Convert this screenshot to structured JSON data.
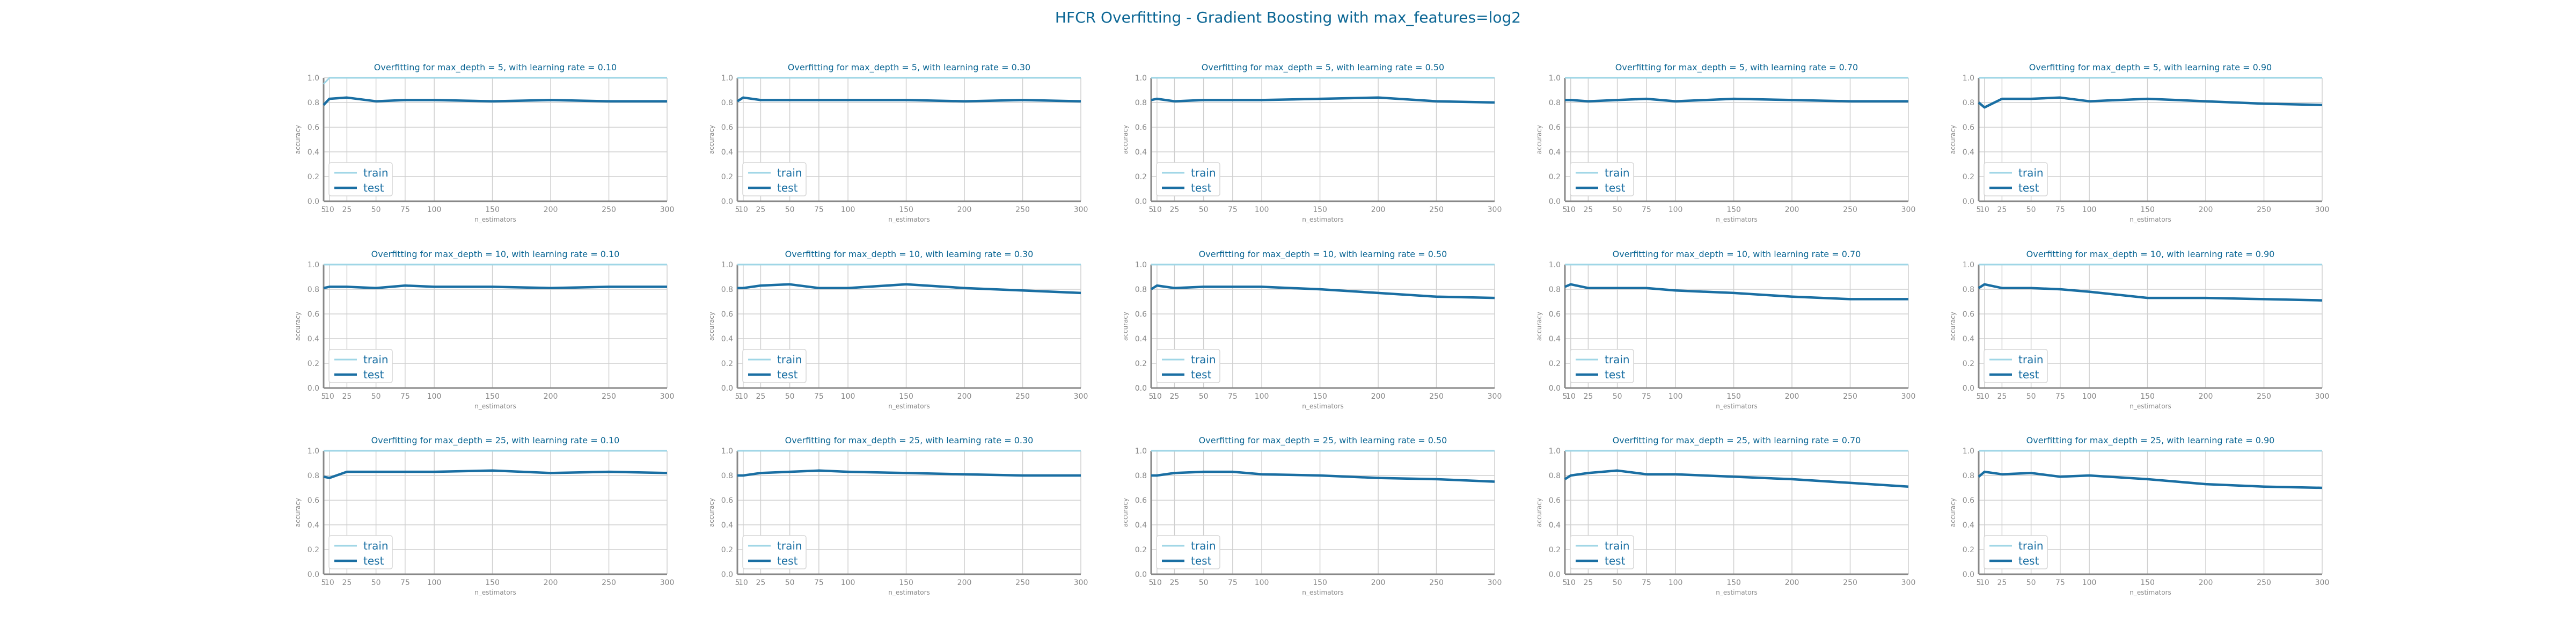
{
  "page": {
    "title": "HFCR Overfitting - Gradient Boosting with max_features=log2"
  },
  "colors": {
    "train": "#9fd6e6",
    "test": "#1a6fa3",
    "title": "#0b6694",
    "axis": "#888888",
    "grid": "#cfcfcf",
    "legend_text": "#1a6fa3"
  },
  "chart_data": [
    {
      "type": "line",
      "title": "Overfitting for max_depth = 5, with learning rate = 0.10",
      "xlabel": "n_estimators",
      "ylabel": "accuracy",
      "x": [
        5,
        10,
        25,
        50,
        75,
        100,
        150,
        200,
        250,
        300
      ],
      "ylim": [
        0,
        1
      ],
      "xlim": [
        5,
        300
      ],
      "xticks": [
        "5",
        "10",
        "25",
        "50",
        "75",
        "100",
        "150",
        "200",
        "250",
        "300"
      ],
      "yticks": [
        "0.0",
        "0.2",
        "0.4",
        "0.6",
        "0.8",
        "1.0"
      ],
      "legend": "lower-left",
      "series": [
        {
          "name": "train",
          "values": [
            0.95,
            1,
            1,
            1,
            1,
            1,
            1,
            1,
            1,
            1
          ]
        },
        {
          "name": "test",
          "values": [
            0.78,
            0.83,
            0.84,
            0.81,
            0.82,
            0.82,
            0.81,
            0.82,
            0.81,
            0.81
          ]
        }
      ]
    },
    {
      "type": "line",
      "title": "Overfitting for max_depth = 5, with learning rate = 0.30",
      "xlabel": "n_estimators",
      "ylabel": "accuracy",
      "x": [
        5,
        10,
        25,
        50,
        75,
        100,
        150,
        200,
        250,
        300
      ],
      "ylim": [
        0,
        1
      ],
      "xlim": [
        5,
        300
      ],
      "xticks": [
        "5",
        "10",
        "25",
        "50",
        "75",
        "100",
        "150",
        "200",
        "250",
        "300"
      ],
      "yticks": [
        "0.0",
        "0.2",
        "0.4",
        "0.6",
        "0.8",
        "1.0"
      ],
      "legend": "lower-left",
      "series": [
        {
          "name": "train",
          "values": [
            1,
            1,
            1,
            1,
            1,
            1,
            1,
            1,
            1,
            1
          ]
        },
        {
          "name": "test",
          "values": [
            0.81,
            0.84,
            0.82,
            0.82,
            0.82,
            0.82,
            0.82,
            0.81,
            0.82,
            0.81
          ]
        }
      ]
    },
    {
      "type": "line",
      "title": "Overfitting for max_depth = 5, with learning rate = 0.50",
      "xlabel": "n_estimators",
      "ylabel": "accuracy",
      "x": [
        5,
        10,
        25,
        50,
        75,
        100,
        150,
        200,
        250,
        300
      ],
      "ylim": [
        0,
        1
      ],
      "xlim": [
        5,
        300
      ],
      "xticks": [
        "5",
        "10",
        "25",
        "50",
        "75",
        "100",
        "150",
        "200",
        "250",
        "300"
      ],
      "yticks": [
        "0.0",
        "0.2",
        "0.4",
        "0.6",
        "0.8",
        "1.0"
      ],
      "legend": "lower-left",
      "series": [
        {
          "name": "train",
          "values": [
            1,
            1,
            1,
            1,
            1,
            1,
            1,
            1,
            1,
            1
          ]
        },
        {
          "name": "test",
          "values": [
            0.82,
            0.83,
            0.81,
            0.82,
            0.82,
            0.82,
            0.83,
            0.84,
            0.81,
            0.8
          ]
        }
      ]
    },
    {
      "type": "line",
      "title": "Overfitting for max_depth = 5, with learning rate = 0.70",
      "xlabel": "n_estimators",
      "ylabel": "accuracy",
      "x": [
        5,
        10,
        25,
        50,
        75,
        100,
        150,
        200,
        250,
        300
      ],
      "ylim": [
        0,
        1
      ],
      "xlim": [
        5,
        300
      ],
      "xticks": [
        "5",
        "10",
        "25",
        "50",
        "75",
        "100",
        "150",
        "200",
        "250",
        "300"
      ],
      "yticks": [
        "0.0",
        "0.2",
        "0.4",
        "0.6",
        "0.8",
        "1.0"
      ],
      "legend": "lower-left",
      "series": [
        {
          "name": "train",
          "values": [
            1,
            1,
            1,
            1,
            1,
            1,
            1,
            1,
            1,
            1
          ]
        },
        {
          "name": "test",
          "values": [
            0.82,
            0.82,
            0.81,
            0.82,
            0.83,
            0.81,
            0.83,
            0.82,
            0.81,
            0.81
          ]
        }
      ]
    },
    {
      "type": "line",
      "title": "Overfitting for max_depth = 5, with learning rate = 0.90",
      "xlabel": "n_estimators",
      "ylabel": "accuracy",
      "x": [
        5,
        10,
        25,
        50,
        75,
        100,
        150,
        200,
        250,
        300
      ],
      "ylim": [
        0,
        1
      ],
      "xlim": [
        5,
        300
      ],
      "xticks": [
        "5",
        "10",
        "25",
        "50",
        "75",
        "100",
        "150",
        "200",
        "250",
        "300"
      ],
      "yticks": [
        "0.0",
        "0.2",
        "0.4",
        "0.6",
        "0.8",
        "1.0"
      ],
      "legend": "lower-left",
      "series": [
        {
          "name": "train",
          "values": [
            1,
            1,
            1,
            1,
            1,
            1,
            1,
            1,
            1,
            1
          ]
        },
        {
          "name": "test",
          "values": [
            0.8,
            0.76,
            0.83,
            0.83,
            0.84,
            0.81,
            0.83,
            0.81,
            0.79,
            0.78
          ]
        }
      ]
    },
    {
      "type": "line",
      "title": "Overfitting for max_depth = 10, with learning rate = 0.10",
      "xlabel": "n_estimators",
      "ylabel": "accuracy",
      "x": [
        5,
        10,
        25,
        50,
        75,
        100,
        150,
        200,
        250,
        300
      ],
      "ylim": [
        0,
        1
      ],
      "xlim": [
        5,
        300
      ],
      "xticks": [
        "5",
        "10",
        "25",
        "50",
        "75",
        "100",
        "150",
        "200",
        "250",
        "300"
      ],
      "yticks": [
        "0.0",
        "0.2",
        "0.4",
        "0.6",
        "0.8",
        "1.0"
      ],
      "legend": "lower-left",
      "series": [
        {
          "name": "train",
          "values": [
            1,
            1,
            1,
            1,
            1,
            1,
            1,
            1,
            1,
            1
          ]
        },
        {
          "name": "test",
          "values": [
            0.81,
            0.82,
            0.82,
            0.81,
            0.83,
            0.82,
            0.82,
            0.81,
            0.82,
            0.82
          ]
        }
      ]
    },
    {
      "type": "line",
      "title": "Overfitting for max_depth = 10, with learning rate = 0.30",
      "xlabel": "n_estimators",
      "ylabel": "accuracy",
      "x": [
        5,
        10,
        25,
        50,
        75,
        100,
        150,
        200,
        250,
        300
      ],
      "ylim": [
        0,
        1
      ],
      "xlim": [
        5,
        300
      ],
      "xticks": [
        "5",
        "10",
        "25",
        "50",
        "75",
        "100",
        "150",
        "200",
        "250",
        "300"
      ],
      "yticks": [
        "0.0",
        "0.2",
        "0.4",
        "0.6",
        "0.8",
        "1.0"
      ],
      "legend": "lower-left",
      "series": [
        {
          "name": "train",
          "values": [
            1,
            1,
            1,
            1,
            1,
            1,
            1,
            1,
            1,
            1
          ]
        },
        {
          "name": "test",
          "values": [
            0.81,
            0.81,
            0.83,
            0.84,
            0.81,
            0.81,
            0.84,
            0.81,
            0.79,
            0.77
          ]
        }
      ]
    },
    {
      "type": "line",
      "title": "Overfitting for max_depth = 10, with learning rate = 0.50",
      "xlabel": "n_estimators",
      "ylabel": "accuracy",
      "x": [
        5,
        10,
        25,
        50,
        75,
        100,
        150,
        200,
        250,
        300
      ],
      "ylim": [
        0,
        1
      ],
      "xlim": [
        5,
        300
      ],
      "xticks": [
        "5",
        "10",
        "25",
        "50",
        "75",
        "100",
        "150",
        "200",
        "250",
        "300"
      ],
      "yticks": [
        "0.0",
        "0.2",
        "0.4",
        "0.6",
        "0.8",
        "1.0"
      ],
      "legend": "lower-left",
      "series": [
        {
          "name": "train",
          "values": [
            1,
            1,
            1,
            1,
            1,
            1,
            1,
            1,
            1,
            1
          ]
        },
        {
          "name": "test",
          "values": [
            0.8,
            0.83,
            0.81,
            0.82,
            0.82,
            0.82,
            0.8,
            0.77,
            0.74,
            0.73
          ]
        }
      ]
    },
    {
      "type": "line",
      "title": "Overfitting for max_depth = 10, with learning rate = 0.70",
      "xlabel": "n_estimators",
      "ylabel": "accuracy",
      "x": [
        5,
        10,
        25,
        50,
        75,
        100,
        150,
        200,
        250,
        300
      ],
      "ylim": [
        0,
        1
      ],
      "xlim": [
        5,
        300
      ],
      "xticks": [
        "5",
        "10",
        "25",
        "50",
        "75",
        "100",
        "150",
        "200",
        "250",
        "300"
      ],
      "yticks": [
        "0.0",
        "0.2",
        "0.4",
        "0.6",
        "0.8",
        "1.0"
      ],
      "legend": "lower-left",
      "series": [
        {
          "name": "train",
          "values": [
            1,
            1,
            1,
            1,
            1,
            1,
            1,
            1,
            1,
            1
          ]
        },
        {
          "name": "test",
          "values": [
            0.82,
            0.84,
            0.81,
            0.81,
            0.81,
            0.79,
            0.77,
            0.74,
            0.72,
            0.72
          ]
        }
      ]
    },
    {
      "type": "line",
      "title": "Overfitting for max_depth = 10, with learning rate = 0.90",
      "xlabel": "n_estimators",
      "ylabel": "accuracy",
      "x": [
        5,
        10,
        25,
        50,
        75,
        100,
        150,
        200,
        250,
        300
      ],
      "ylim": [
        0,
        1
      ],
      "xlim": [
        5,
        300
      ],
      "xticks": [
        "5",
        "10",
        "25",
        "50",
        "75",
        "100",
        "150",
        "200",
        "250",
        "300"
      ],
      "yticks": [
        "0.0",
        "0.2",
        "0.4",
        "0.6",
        "0.8",
        "1.0"
      ],
      "legend": "lower-left",
      "series": [
        {
          "name": "train",
          "values": [
            1,
            1,
            1,
            1,
            1,
            1,
            1,
            1,
            1,
            1
          ]
        },
        {
          "name": "test",
          "values": [
            0.81,
            0.84,
            0.81,
            0.81,
            0.8,
            0.78,
            0.73,
            0.73,
            0.72,
            0.71
          ]
        }
      ]
    },
    {
      "type": "line",
      "title": "Overfitting for max_depth = 25, with learning rate = 0.10",
      "xlabel": "n_estimators",
      "ylabel": "accuracy",
      "x": [
        5,
        10,
        25,
        50,
        75,
        100,
        150,
        200,
        250,
        300
      ],
      "ylim": [
        0,
        1
      ],
      "xlim": [
        5,
        300
      ],
      "xticks": [
        "5",
        "10",
        "25",
        "50",
        "75",
        "100",
        "150",
        "200",
        "250",
        "300"
      ],
      "yticks": [
        "0.0",
        "0.2",
        "0.4",
        "0.6",
        "0.8",
        "1.0"
      ],
      "legend": "lower-left",
      "series": [
        {
          "name": "train",
          "values": [
            1,
            1,
            1,
            1,
            1,
            1,
            1,
            1,
            1,
            1
          ]
        },
        {
          "name": "test",
          "values": [
            0.79,
            0.78,
            0.83,
            0.83,
            0.83,
            0.83,
            0.84,
            0.82,
            0.83,
            0.82
          ]
        }
      ]
    },
    {
      "type": "line",
      "title": "Overfitting for max_depth = 25, with learning rate = 0.30",
      "xlabel": "n_estimators",
      "ylabel": "accuracy",
      "x": [
        5,
        10,
        25,
        50,
        75,
        100,
        150,
        200,
        250,
        300
      ],
      "ylim": [
        0,
        1
      ],
      "xlim": [
        5,
        300
      ],
      "xticks": [
        "5",
        "10",
        "25",
        "50",
        "75",
        "100",
        "150",
        "200",
        "250",
        "300"
      ],
      "yticks": [
        "0.0",
        "0.2",
        "0.4",
        "0.6",
        "0.8",
        "1.0"
      ],
      "legend": "lower-left",
      "series": [
        {
          "name": "train",
          "values": [
            1,
            1,
            1,
            1,
            1,
            1,
            1,
            1,
            1,
            1
          ]
        },
        {
          "name": "test",
          "values": [
            0.8,
            0.8,
            0.82,
            0.83,
            0.84,
            0.83,
            0.82,
            0.81,
            0.8,
            0.8
          ]
        }
      ]
    },
    {
      "type": "line",
      "title": "Overfitting for max_depth = 25, with learning rate = 0.50",
      "xlabel": "n_estimators",
      "ylabel": "accuracy",
      "x": [
        5,
        10,
        25,
        50,
        75,
        100,
        150,
        200,
        250,
        300
      ],
      "ylim": [
        0,
        1
      ],
      "xlim": [
        5,
        300
      ],
      "xticks": [
        "5",
        "10",
        "25",
        "50",
        "75",
        "100",
        "150",
        "200",
        "250",
        "300"
      ],
      "yticks": [
        "0.0",
        "0.2",
        "0.4",
        "0.6",
        "0.8",
        "1.0"
      ],
      "legend": "lower-left",
      "series": [
        {
          "name": "train",
          "values": [
            1,
            1,
            1,
            1,
            1,
            1,
            1,
            1,
            1,
            1
          ]
        },
        {
          "name": "test",
          "values": [
            0.8,
            0.8,
            0.82,
            0.83,
            0.83,
            0.81,
            0.8,
            0.78,
            0.77,
            0.75
          ]
        }
      ]
    },
    {
      "type": "line",
      "title": "Overfitting for max_depth = 25, with learning rate = 0.70",
      "xlabel": "n_estimators",
      "ylabel": "accuracy",
      "x": [
        5,
        10,
        25,
        50,
        75,
        100,
        150,
        200,
        250,
        300
      ],
      "ylim": [
        0,
        1
      ],
      "xlim": [
        5,
        300
      ],
      "xticks": [
        "5",
        "10",
        "25",
        "50",
        "75",
        "100",
        "150",
        "200",
        "250",
        "300"
      ],
      "yticks": [
        "0.0",
        "0.2",
        "0.4",
        "0.6",
        "0.8",
        "1.0"
      ],
      "legend": "lower-left",
      "series": [
        {
          "name": "train",
          "values": [
            1,
            1,
            1,
            1,
            1,
            1,
            1,
            1,
            1,
            1
          ]
        },
        {
          "name": "test",
          "values": [
            0.77,
            0.8,
            0.82,
            0.84,
            0.81,
            0.81,
            0.79,
            0.77,
            0.74,
            0.71
          ]
        }
      ]
    },
    {
      "type": "line",
      "title": "Overfitting for max_depth = 25, with learning rate = 0.90",
      "xlabel": "n_estimators",
      "ylabel": "accuracy",
      "x": [
        5,
        10,
        25,
        50,
        75,
        100,
        150,
        200,
        250,
        300
      ],
      "ylim": [
        0,
        1
      ],
      "xlim": [
        5,
        300
      ],
      "xticks": [
        "5",
        "10",
        "25",
        "50",
        "75",
        "100",
        "150",
        "200",
        "250",
        "300"
      ],
      "yticks": [
        "0.0",
        "0.2",
        "0.4",
        "0.6",
        "0.8",
        "1.0"
      ],
      "legend": "lower-left",
      "series": [
        {
          "name": "train",
          "values": [
            1,
            1,
            1,
            1,
            1,
            1,
            1,
            1,
            1,
            1
          ]
        },
        {
          "name": "test",
          "values": [
            0.79,
            0.83,
            0.81,
            0.82,
            0.79,
            0.8,
            0.77,
            0.73,
            0.71,
            0.7
          ]
        }
      ]
    }
  ]
}
